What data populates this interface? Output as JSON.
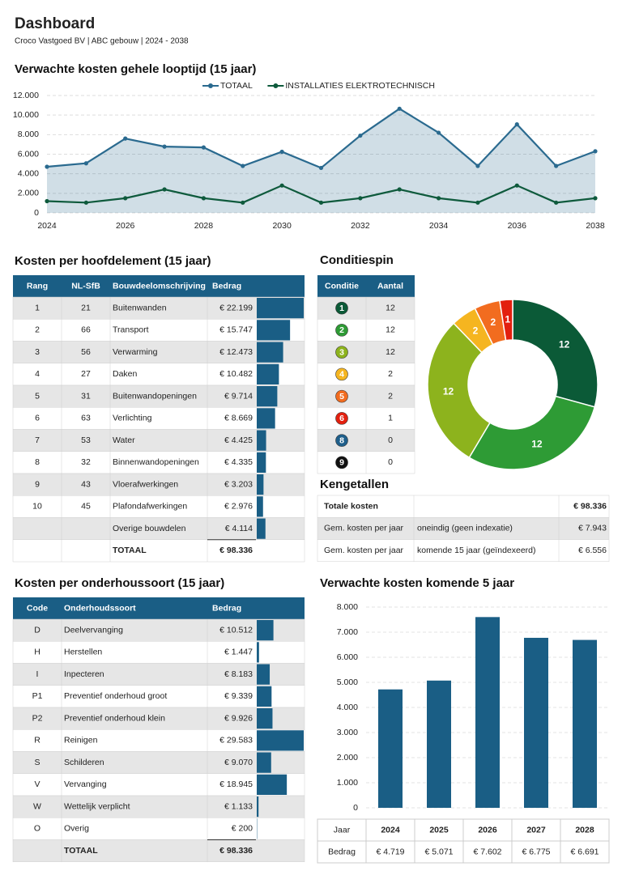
{
  "header": {
    "title": "Dashboard",
    "subtitle": "Croco Vastgoed BV | ABC gebouw | 2024 - 2038"
  },
  "chart_data": [
    {
      "type": "line",
      "title": "Verwachte kosten gehele looptijd (15 jaar)",
      "x": [
        2024,
        2025,
        2026,
        2027,
        2028,
        2029,
        2030,
        2031,
        2032,
        2033,
        2034,
        2035,
        2036,
        2037,
        2038
      ],
      "xlim": [
        2024,
        2038
      ],
      "xticks": [
        2024,
        2026,
        2028,
        2030,
        2032,
        2034,
        2036,
        2038
      ],
      "ylim": [
        0,
        12000
      ],
      "yticks": [
        0,
        {
          "value": 2000,
          "label": "2.000"
        },
        {
          "value": 4000,
          "label": "4.000"
        },
        {
          "value": 6000,
          "label": "6.000"
        },
        {
          "value": 8000,
          "label": "8.000"
        },
        {
          "value": 10000,
          "label": "10.000"
        },
        {
          "value": 12000,
          "label": "12.000"
        }
      ],
      "grid": true,
      "legend": "top",
      "series": [
        {
          "name": "TOTAAL",
          "color": "#2a6a8f",
          "area": true,
          "values": [
            4719,
            5071,
            7602,
            6775,
            6691,
            4800,
            6250,
            4600,
            7900,
            10650,
            8200,
            4800,
            9050,
            4800,
            6300
          ]
        },
        {
          "name": "INSTALLATIES ELEKTROTECHNISCH",
          "color": "#0e5a3c",
          "area": false,
          "values": [
            1200,
            1050,
            1500,
            2400,
            1500,
            1050,
            2800,
            1050,
            1500,
            2400,
            1500,
            1050,
            2800,
            1050,
            1500
          ]
        }
      ]
    },
    {
      "type": "pie",
      "donut": true,
      "values": [
        12,
        12,
        12,
        2,
        2,
        1
      ],
      "colors": [
        "#0b5a37",
        "#2e9b35",
        "#8db31d",
        "#f5b520",
        "#f26c1f",
        "#e3200f"
      ]
    },
    {
      "type": "bar",
      "title": "Verwachte kosten komende 5 jaar",
      "categories": [
        "2024",
        "2025",
        "2026",
        "2027",
        "2028"
      ],
      "values": [
        4719,
        5071,
        7602,
        6775,
        6691
      ],
      "value_labels": [
        "€ 4.719",
        "€ 5.071",
        "€ 7.602",
        "€ 6.775",
        "€ 6.691"
      ],
      "color": "#1a5e85",
      "ylim": [
        0,
        8000
      ],
      "yticks": [
        0,
        {
          "value": 1000,
          "label": "1.000"
        },
        {
          "value": 2000,
          "label": "2.000"
        },
        {
          "value": 3000,
          "label": "3.000"
        },
        {
          "value": 4000,
          "label": "4.000"
        },
        {
          "value": 5000,
          "label": "5.000"
        },
        {
          "value": 6000,
          "label": "6.000"
        },
        {
          "value": 7000,
          "label": "7.000"
        },
        {
          "value": 8000,
          "label": "8.000"
        }
      ],
      "grid": true,
      "table_labels": [
        "Jaar",
        "Bedrag"
      ]
    }
  ],
  "hoofdelement": {
    "title": "Kosten per hoofdelement (15 jaar)",
    "columns": [
      "Rang",
      "NL-SfB",
      "Bouwdeelomschrijving",
      "Bedrag"
    ],
    "rows": [
      [
        "1",
        "21",
        "Buitenwanden"
      ],
      [
        "2",
        "66",
        "Transport"
      ],
      [
        "3",
        "56",
        "Verwarming"
      ],
      [
        "4",
        "27",
        "Daken"
      ],
      [
        "5",
        "31",
        "Buitenwandopeningen"
      ],
      [
        "6",
        "63",
        "Verlichting"
      ],
      [
        "7",
        "53",
        "Water"
      ],
      [
        "8",
        "32",
        "Binnenwandopeningen"
      ],
      [
        "9",
        "43",
        "Vloerafwerkingen"
      ],
      [
        "10",
        "45",
        "Plafondafwerkingen"
      ],
      [
        null,
        null,
        "Overige bouwdelen"
      ]
    ],
    "values": [
      22199,
      15747,
      12473,
      10482,
      9714,
      8669,
      4425,
      4335,
      3203,
      2976,
      4114
    ],
    "value_labels": [
      "€ 22.199",
      "€ 15.747",
      "€ 12.473",
      "€ 10.482",
      "€ 9.714",
      "€ 8.669",
      "€ 4.425",
      "€ 4.335",
      "€ 3.203",
      "€ 2.976",
      "€ 4.114"
    ],
    "total_label": "TOTAAL",
    "total": "€ 98.336"
  },
  "conditie": {
    "title": "Conditiespin",
    "columns": [
      "Conditie",
      "Aantal"
    ],
    "conditions": [
      "1",
      "2",
      "3",
      "4",
      "5",
      "6",
      "8",
      "9"
    ],
    "colors": [
      "#0b5a37",
      "#2e9b35",
      "#8db31d",
      "#f5b520",
      "#f26c1f",
      "#e3200f",
      "#1f5f8b",
      "#111111"
    ],
    "counts": [
      "12",
      "12",
      "12",
      "2",
      "2",
      "1",
      "0",
      "0"
    ]
  },
  "kengetallen": {
    "title": "Kengetallen",
    "rows": [
      [
        "Totale kosten",
        null,
        "€ 98.336"
      ],
      [
        "Gem. kosten per jaar",
        "oneindig (geen indexatie)",
        "€ 7.943"
      ],
      [
        "Gem. kosten per jaar",
        "komende 15 jaar (geïndexeerd)",
        "€ 6.556"
      ]
    ]
  },
  "onderhoudssoort": {
    "title": "Kosten per onderhoussoort (15 jaar)",
    "columns": [
      "Code",
      "Onderhoudssoort",
      "Bedrag"
    ],
    "rows": [
      [
        "D",
        "Deelvervanging"
      ],
      [
        "H",
        "Herstellen"
      ],
      [
        "I",
        "Inpecteren"
      ],
      [
        "P1",
        "Preventief onderhoud groot"
      ],
      [
        "P2",
        "Preventief onderhoud klein"
      ],
      [
        "R",
        "Reinigen"
      ],
      [
        "S",
        "Schilderen"
      ],
      [
        "V",
        "Vervanging"
      ],
      [
        "W",
        "Wettelijk verplicht"
      ],
      [
        "O",
        "Overig"
      ]
    ],
    "values": [
      10512,
      1447,
      8183,
      9339,
      9926,
      29583,
      9070,
      18945,
      1133,
      200
    ],
    "value_labels": [
      "€ 10.512",
      "€ 1.447",
      "€ 8.183",
      "€ 9.339",
      "€ 9.926",
      "€ 29.583",
      "€ 9.070",
      "€ 18.945",
      "€ 1.133",
      "€ 200"
    ],
    "total_label": "TOTAAL",
    "total": "€ 98.336"
  }
}
